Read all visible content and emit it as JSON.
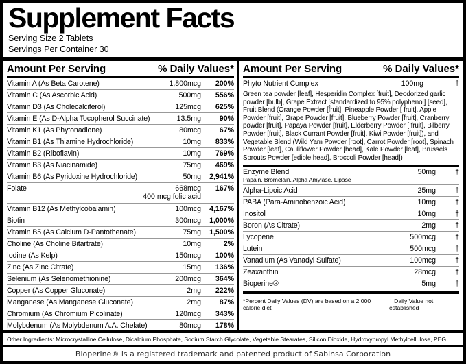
{
  "header": {
    "title": "Supplement Facts",
    "serving_size": "Serving Size 2 Tablets",
    "servings_per_container": "Servings Per Container 30"
  },
  "column_headers": {
    "amount": "Amount Per Serving",
    "daily_values": "% Daily Values*"
  },
  "left_rows": [
    {
      "name": "Vitamin A (As Beta Carotene)",
      "amount": "1,800mcg",
      "dv": "200%"
    },
    {
      "name": "Vitamin C (As Ascorbic Acid)",
      "amount": "500mg",
      "dv": "556%"
    },
    {
      "name": "Vitamin D3 (As Cholecalciferol)",
      "amount": "125mcg",
      "dv": "625%"
    },
    {
      "name": "Vitamin E (As D-Alpha Tocopherol Succinate)",
      "amount": "13.5mg",
      "dv": "90%"
    },
    {
      "name": "Vitamin K1 (As Phytonadione)",
      "amount": "80mcg",
      "dv": "67%"
    },
    {
      "name": "Vitamin B1 (As Thiamine Hydrochloride)",
      "amount": "10mg",
      "dv": "833%"
    },
    {
      "name": "Vitamin B2 (Riboflavin)",
      "amount": "10mg",
      "dv": "769%"
    },
    {
      "name": "Vitamin B3 (As Niacinamide)",
      "amount": "75mg",
      "dv": "469%"
    },
    {
      "name": "Vitamin B6 (As Pyridoxine Hydrochloride)",
      "amount": "50mg",
      "dv": "2,941%"
    },
    {
      "name": "Folate",
      "amount": "668mcg",
      "dv": "167%",
      "sub": "400 mcg folic acid"
    },
    {
      "name": "Vitamin B12 (As Methylcobalamin)",
      "amount": "100mcg",
      "dv": "4,167%"
    },
    {
      "name": "Biotin",
      "amount": "300mcg",
      "dv": "1,000%"
    },
    {
      "name": "Vitamin B5 (As Calcium D-Pantothenate)",
      "amount": "75mg",
      "dv": "1,500%"
    },
    {
      "name": "Choline (As Choline Bitartrate)",
      "amount": "10mg",
      "dv": "2%"
    },
    {
      "name": "Iodine (As Kelp)",
      "amount": "150mcg",
      "dv": "100%"
    },
    {
      "name": "Zinc (As Zinc Citrate)",
      "amount": "15mg",
      "dv": "136%"
    },
    {
      "name": "Selenium (As Selenomethionine)",
      "amount": "200mcg",
      "dv": "364%"
    },
    {
      "name": "Copper (As Copper Gluconate)",
      "amount": "2mg",
      "dv": "222%"
    },
    {
      "name": "Manganese (As Manganese Gluconate)",
      "amount": "2mg",
      "dv": "87%"
    },
    {
      "name": "Chromium (As Chromium Picolinate)",
      "amount": "120mcg",
      "dv": "343%"
    },
    {
      "name": "Molybdenum (As Molybdenum A.A. Chelate)",
      "amount": "80mcg",
      "dv": "178%"
    }
  ],
  "right_column": {
    "phyto": {
      "name": "Phyto Nutrient Complex",
      "amount": "100mg",
      "dv": "†",
      "description": "Green tea powder [leaf], Hesperidin Complex [fruit], Deodorized garlic powder [bulb], Grape Extract [standardized to 95% polyphenol] [seed], Fruit Blend (Orange Powder [fruit], Pineapple Powder [ fruit], Apple Powder [fruit], Grape Powder [fruit], Blueberry Powder [fruit], Cranberry powder [fruit], Papaya Powder [fruit], Elderberry Powder [ fruit], Bilberry Powder [fruit], Black Currant Powder [fruit], Kiwi Powder [fruit]), and Vegetable Blend (Wild Yam Powder [root], Carrot Powder [root], Spinach Powder [leaf], Cauliflower Powder [head], Kale Powder [leaf], Brussels Sprouts Powder [edible head], Broccoli Powder [head])"
    },
    "rows": [
      {
        "name": "Enzyme Blend",
        "amount": "50mg",
        "dv": "†",
        "subtext": "Papain, Bromelain, Alpha Amylase, Lipase"
      },
      {
        "name": "Alpha-Lipoic Acid",
        "amount": "25mg",
        "dv": "†"
      },
      {
        "name": "PABA (Para-Aminobenzoic Acid)",
        "amount": "10mg",
        "dv": "†"
      },
      {
        "name": "Inositol",
        "amount": "10mg",
        "dv": "†"
      },
      {
        "name": "Boron (As Citrate)",
        "amount": "2mg",
        "dv": "†"
      },
      {
        "name": "Lycopene",
        "amount": "500mcg",
        "dv": "†"
      },
      {
        "name": "Lutein",
        "amount": "500mcg",
        "dv": "†"
      },
      {
        "name": "Vanadium (As Vanadyl Sulfate)",
        "amount": "100mcg",
        "dv": "†"
      },
      {
        "name": "Zeaxanthin",
        "amount": "28mcg",
        "dv": "†"
      },
      {
        "name": "Bioperine®",
        "amount": "5mg",
        "dv": "†"
      }
    ],
    "footnote_left": "*Percent Daily Values (DV) are based on a 2,000 calorie diet",
    "footnote_right": "† Daily Value not established"
  },
  "other_ingredients": "Other Ingredients: Microcrystalline Cellulose, Dicalcium Phosphate, Sodium Starch Glycolate, Vegetable Stearates, Silicon Dioxide, Hydroxypropyl Methylcellulose, PEG",
  "trademark": "Bioperine® is a registered trademark and patented product of Sabinsa Corporation",
  "colors": {
    "ink": "#000000",
    "background": "#ffffff",
    "separator": "#999999"
  }
}
